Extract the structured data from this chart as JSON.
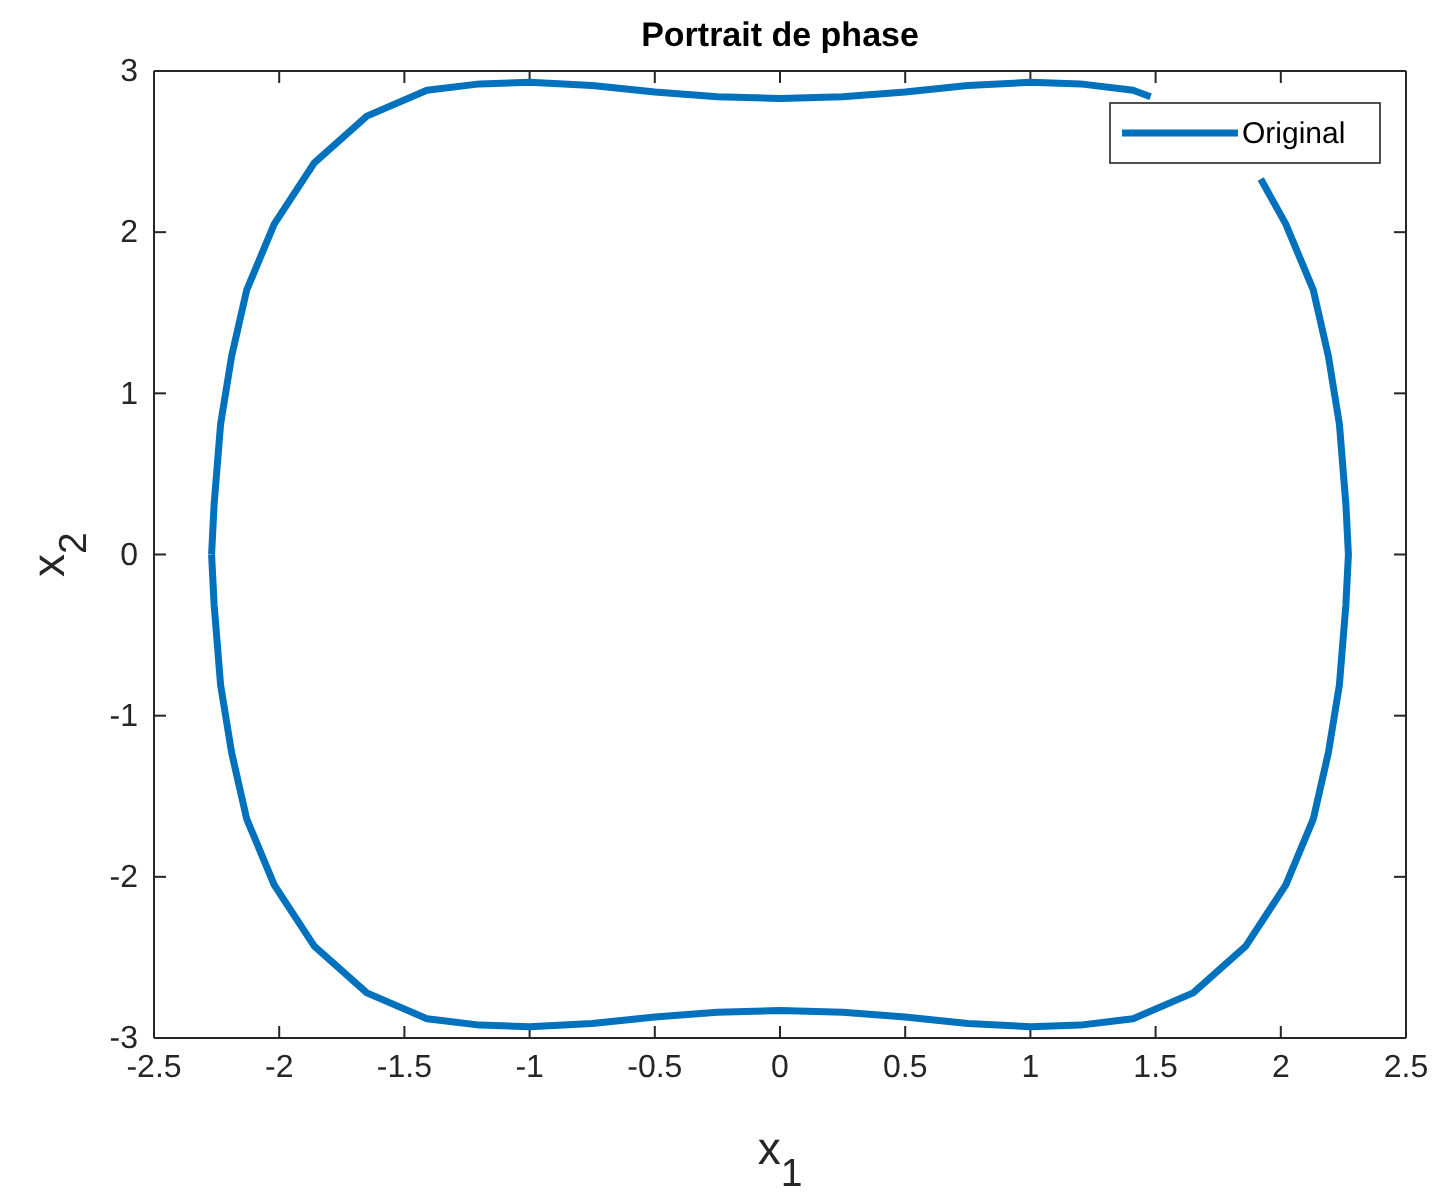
{
  "chart_data": {
    "type": "line",
    "title": "Portrait de phase",
    "xlabel": "x$_{1}$",
    "ylabel": "x$_{2}$",
    "xlim": [
      -2.5,
      2.5
    ],
    "xticks": [
      -2.5,
      -2,
      -1.5,
      -1,
      -0.5,
      0,
      0.5,
      1,
      1.5,
      2,
      2.5
    ],
    "ylim": [
      -3,
      3
    ],
    "yticks": [
      -3,
      -2,
      -1,
      0,
      1,
      2,
      3
    ],
    "grid": false,
    "legend": "top right",
    "line_style": "solid",
    "marker": "none",
    "series": [
      {
        "name": "Original",
        "color": "#0072bd",
        "x": [
          -2.27,
          -2.26,
          -2.234,
          -2.19,
          -2.13,
          -2.02,
          -1.86,
          -1.65,
          -1.41,
          -1.2,
          -1.0,
          -0.75,
          -0.5,
          -0.25,
          0,
          0.25,
          0.5,
          0.75,
          1.0,
          1.2,
          1.41,
          1.48,
          1.7,
          1.92,
          2.02,
          2.13,
          2.19,
          2.234,
          2.26,
          2.27,
          2.26,
          2.234,
          2.19,
          2.13,
          2.02,
          1.86,
          1.65,
          1.41,
          1.2,
          1.0,
          0.75,
          0.5,
          0.25,
          0,
          -0.25,
          -0.5,
          -0.75,
          -1.0,
          -1.2,
          -1.41,
          -1.65,
          -1.86,
          -2.02,
          -2.13,
          -2.19,
          -2.234,
          -2.26,
          -2.27
        ],
        "values": [
          0,
          0.31,
          0.81,
          1.23,
          1.64,
          2.05,
          2.43,
          2.72,
          2.88,
          2.92,
          2.93,
          2.91,
          2.87,
          2.84,
          2.83,
          2.84,
          2.87,
          2.91,
          2.93,
          2.92,
          2.88,
          2.84,
          null,
          2.33,
          2.05,
          1.64,
          1.23,
          0.81,
          0.31,
          0,
          -0.31,
          -0.81,
          -1.23,
          -1.64,
          -2.05,
          -2.43,
          -2.72,
          -2.88,
          -2.92,
          -2.93,
          -2.91,
          -2.87,
          -2.84,
          -2.83,
          -2.84,
          -2.87,
          -2.91,
          -2.93,
          -2.92,
          -2.88,
          -2.72,
          -2.43,
          -2.05,
          -1.64,
          -1.23,
          -0.81,
          -0.31,
          0
        ]
      }
    ]
  }
}
